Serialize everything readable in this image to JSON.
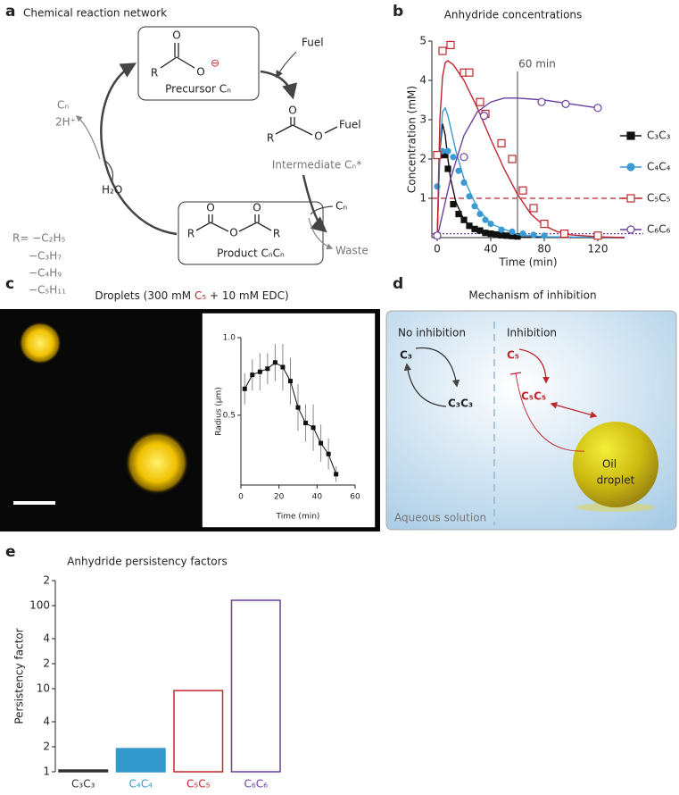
{
  "panel_labels": [
    "a",
    "b",
    "c",
    "d",
    "e"
  ],
  "panel_a": {
    "title": "Chemical reaction network",
    "atoms": {
      "r": "R",
      "o": "O",
      "charge": "⊖"
    },
    "precursor": "Precursor Cₙ",
    "fuel_in": "Fuel",
    "fuel_group": "Fuel",
    "intermediate": "Intermediate Cₙ*",
    "cn_in": "Cₙ",
    "waste": "Waste",
    "product": "Product CₙCₙ",
    "water": "H₂O",
    "release": [
      "Cₙ",
      "2H⁺"
    ],
    "r_groups": [
      "R= −C₂H₅",
      "−C₃H₇",
      "−C₄H₉",
      "−C₅H₁₁"
    ]
  },
  "panel_c": {
    "title": [
      "Droplets (300 mM ",
      "C₅",
      " + 10 mM EDC)"
    ]
  },
  "panel_d": {
    "title": "Mechanism of inhibition",
    "left_label": "No inhibition",
    "right_label": "Inhibition",
    "c3": "C₃",
    "c3c3": "C₃C₃",
    "c5": "C₅",
    "c5c5": "C₅C₅",
    "droplet": [
      "Oil",
      "droplet"
    ],
    "solution": "Aqueous solution"
  },
  "chart_data": [
    {
      "type": "line",
      "title": "Anhydride concentrations",
      "xlabel": "Time (min)",
      "ylabel": "Concentration (mM)",
      "xlim": [
        -4,
        140
      ],
      "xticks": [
        0,
        40,
        80,
        120
      ],
      "ylim": [
        0,
        5
      ],
      "yticks": [
        1,
        2,
        3,
        4,
        5
      ],
      "annotations": [
        {
          "text": "60 min",
          "x": 60
        }
      ],
      "reference_lines": [
        {
          "y": 1,
          "color": "#c0272d",
          "style": "dashed"
        },
        {
          "y": 0.1,
          "color": "#6b3fa0",
          "style": "dotted"
        }
      ],
      "series": [
        {
          "name": "C₃C₃",
          "color": "#111111",
          "marker": "square",
          "filled": true,
          "x": [
            0,
            2,
            4,
            6,
            8,
            12,
            16,
            20,
            24,
            28,
            32,
            36,
            40,
            44,
            48,
            52,
            56,
            60
          ],
          "values": [
            0.05,
            2.1,
            2.15,
            2.1,
            1.75,
            0.85,
            0.6,
            0.45,
            0.3,
            0.22,
            0.18,
            0.12,
            0.1,
            0.08,
            0.06,
            0.05,
            0.04,
            0.03
          ],
          "fit_x": [
            0,
            2,
            4,
            6,
            8,
            10,
            14,
            20,
            30,
            40,
            60,
            80,
            120,
            140
          ],
          "fit_values": [
            0,
            2.2,
            2.9,
            2.6,
            2.0,
            1.5,
            0.9,
            0.45,
            0.15,
            0.06,
            0.02,
            0.01,
            0,
            0
          ]
        },
        {
          "name": "C₄C₄",
          "color": "#3a9ad1",
          "marker": "circle",
          "filled": true,
          "x": [
            0,
            4,
            8,
            12,
            16,
            20,
            24,
            28,
            32,
            36,
            40,
            48,
            56,
            64,
            72,
            80
          ],
          "values": [
            1.3,
            2.2,
            2.2,
            2.05,
            1.7,
            1.4,
            1.05,
            0.8,
            0.6,
            0.45,
            0.35,
            0.2,
            0.15,
            0.1,
            0.07,
            0.05
          ],
          "fit_x": [
            0,
            2,
            4,
            6,
            8,
            10,
            14,
            20,
            30,
            40,
            60,
            80,
            120,
            140
          ],
          "fit_values": [
            0,
            2.3,
            3.2,
            3.3,
            3.1,
            2.8,
            2.2,
            1.5,
            0.75,
            0.35,
            0.08,
            0.02,
            0.01,
            0
          ]
        },
        {
          "name": "C₅C₅",
          "color": "#c0272d",
          "marker": "square",
          "filled": false,
          "x": [
            0,
            4,
            10,
            20,
            24,
            32,
            36,
            48,
            56,
            64,
            72,
            80,
            95,
            120
          ],
          "values": [
            2.1,
            4.75,
            4.9,
            4.2,
            4.2,
            3.45,
            3.15,
            2.4,
            2.0,
            1.2,
            0.75,
            0.35,
            0.1,
            0.05
          ],
          "fit_x": [
            0,
            2,
            4,
            6,
            8,
            12,
            20,
            30,
            40,
            50,
            60,
            70,
            80,
            90,
            100,
            120,
            140
          ],
          "fit_values": [
            0,
            3,
            4.1,
            4.45,
            4.5,
            4.4,
            4.0,
            3.3,
            2.5,
            1.75,
            1.1,
            0.6,
            0.3,
            0.15,
            0.07,
            0.02,
            0
          ]
        },
        {
          "name": "C₆C₆",
          "color": "#6b3fa0",
          "marker": "circle",
          "filled": false,
          "x": [
            0,
            20,
            35,
            78,
            96,
            120
          ],
          "values": [
            0.05,
            2.05,
            3.1,
            3.45,
            3.4,
            3.3
          ],
          "fit_x": [
            0,
            10,
            20,
            30,
            40,
            50,
            60,
            80,
            100,
            120
          ],
          "fit_values": [
            0,
            1.5,
            2.6,
            3.2,
            3.45,
            3.55,
            3.55,
            3.5,
            3.4,
            3.3
          ]
        }
      ]
    },
    {
      "type": "errorbar",
      "xlabel": "Time (min)",
      "ylabel": "Radius (μm)",
      "xlim": [
        0,
        60
      ],
      "xticks": [
        0,
        20,
        40,
        60
      ],
      "ylim": [
        0.05,
        1.0
      ],
      "yticks": [
        0.5,
        {
          "value": 1,
          "label": "1.0"
        }
      ],
      "color": "#111111",
      "x": [
        2,
        6,
        10,
        14,
        18,
        22,
        26,
        30,
        34,
        38,
        42,
        46,
        50
      ],
      "values": [
        0.67,
        0.76,
        0.78,
        0.8,
        0.84,
        0.81,
        0.72,
        0.55,
        0.45,
        0.42,
        0.32,
        0.25,
        0.12
      ],
      "errors": [
        0.1,
        0.1,
        0.12,
        0.1,
        0.12,
        0.15,
        0.15,
        0.15,
        0.12,
        0.15,
        0.12,
        0.1,
        0.05
      ]
    },
    {
      "type": "bar",
      "title": "Anhydride persistency factors",
      "ylabel": "Persistency factor",
      "log_scale": true,
      "categories": [
        "C₃C₃",
        "C₄C₄",
        "C₅C₅",
        "C₆C₆"
      ],
      "values": [
        1.05,
        1.9,
        9.5,
        116
      ],
      "colors": [
        "#333333",
        "#3399cc",
        "#c0272d",
        "#6b3fa0"
      ],
      "filled": [
        true,
        true,
        false,
        false
      ],
      "ylim": [
        1,
        200
      ],
      "yticks": [
        1,
        2,
        4,
        10,
        {
          "value": 20,
          "label": "2"
        },
        {
          "value": 40,
          "label": "4"
        },
        100,
        {
          "value": 200,
          "label": "2"
        }
      ]
    }
  ]
}
